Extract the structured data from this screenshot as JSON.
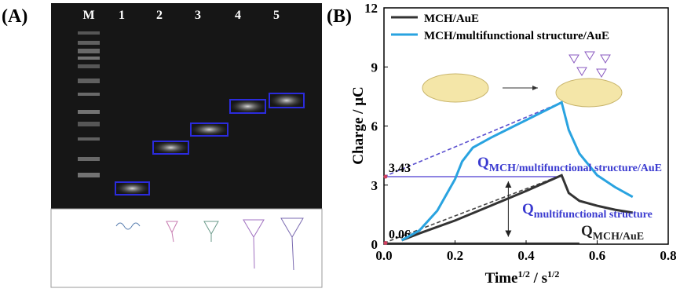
{
  "panel_a": {
    "label": "(A)",
    "lanes": [
      "M",
      "1",
      "2",
      "3",
      "4",
      "5"
    ]
  },
  "chart_data": {
    "type": "line",
    "panel_label": "(B)",
    "y_label": "Charge / μC",
    "x_label": [
      "Time",
      "1/2",
      " / s",
      "1/2"
    ],
    "xlim": [
      0,
      0.8
    ],
    "xticks": [
      {
        "value": 0,
        "label": "0.0"
      },
      {
        "value": 0.2,
        "label": "0.2"
      },
      {
        "value": 0.4,
        "label": "0.4"
      },
      {
        "value": 0.6,
        "label": "0.6"
      },
      {
        "value": 0.8,
        "label": "0.8"
      }
    ],
    "ylim": [
      0,
      12
    ],
    "yticks": [
      0,
      3,
      6,
      9,
      12
    ],
    "legend": "top-left",
    "series": [
      {
        "name": "MCH/AuE",
        "color": "#333333",
        "x": [
          0.05,
          0.1,
          0.2,
          0.3,
          0.4,
          0.5,
          0.52,
          0.55,
          0.6,
          0.65,
          0.7
        ],
        "values": [
          0.2,
          0.55,
          1.2,
          1.95,
          2.7,
          3.5,
          2.6,
          2.2,
          1.95,
          1.75,
          1.6
        ]
      },
      {
        "name": "MCH/multifunctional structure/AuE",
        "color": "#29a3e0",
        "x": [
          0.05,
          0.1,
          0.15,
          0.2,
          0.22,
          0.25,
          0.3,
          0.4,
          0.5,
          0.52,
          0.55,
          0.6,
          0.65,
          0.7
        ],
        "values": [
          0.2,
          0.7,
          1.7,
          3.3,
          4.2,
          4.9,
          5.4,
          6.3,
          7.2,
          5.8,
          4.6,
          3.5,
          2.9,
          2.4
        ]
      }
    ],
    "fits": [
      {
        "color": "#5a4fcf",
        "x": [
          0,
          0.5
        ],
        "values": [
          3.43,
          7.2
        ]
      },
      {
        "color": "#444444",
        "x": [
          0,
          0.5
        ],
        "values": [
          0.06,
          3.5
        ]
      }
    ],
    "annotations": [
      {
        "q": "Q",
        "sub": "MCH/multifunctional structure/AuE",
        "color": "#3a3ad0"
      },
      {
        "q": "Q",
        "sub": "multifunctional structure",
        "color": "#3a3ad0"
      },
      {
        "q": "Q",
        "sub": "MCH/AuE",
        "color": "#222222"
      }
    ]
  }
}
